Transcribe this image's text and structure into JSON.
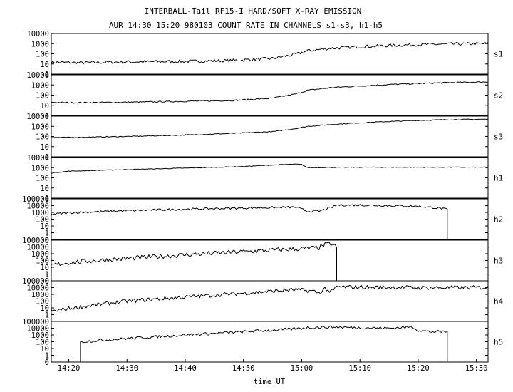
{
  "chart_data": {
    "type": "line",
    "title": "INTERBALL-Tail RF15-I HARD/SOFT X-RAY EMISSION",
    "subtitle": "AUR 14:30 15:20 980103  COUNT RATE IN CHANNELS s1-s3, h1-h5",
    "xlabel": "time UT",
    "x_ticks": [
      "14:20",
      "14:30",
      "14:40",
      "14:50",
      "15:00",
      "15:10",
      "15:20",
      "15:30"
    ],
    "xlim": [
      "14:17",
      "15:32"
    ],
    "y_scale": "log",
    "grid": false,
    "panels": [
      {
        "name": "s1",
        "ylim": [
          1,
          10000
        ],
        "y_ticks": [
          "10000",
          "1000",
          "100",
          "10",
          "1"
        ],
        "series": [
          {
            "x": [
              "14:17",
              "14:22",
              "14:30",
              "14:40",
              "14:48",
              "14:55",
              "14:59",
              "15:01",
              "15:05",
              "15:10",
              "15:15",
              "15:20",
              "15:25",
              "15:32"
            ],
            "y": [
              15,
              13,
              16,
              18,
              22,
              35,
              90,
              200,
              350,
              500,
              650,
              800,
              900,
              1000
            ],
            "noise": 0.15
          }
        ]
      },
      {
        "name": "s2",
        "ylim": [
          1,
          10000
        ],
        "y_ticks": [
          "10000",
          "1000",
          "100",
          "10",
          "1"
        ],
        "series": [
          {
            "x": [
              "14:17",
              "14:20",
              "14:30",
              "14:40",
              "14:48",
              "14:55",
              "14:59",
              "15:01",
              "15:05",
              "15:10",
              "15:15",
              "15:20",
              "15:25",
              "15:32"
            ],
            "y": [
              20,
              18,
              20,
              25,
              30,
              50,
              130,
              300,
              550,
              800,
              1100,
              1400,
              1700,
              2000
            ],
            "noise": 0.06
          }
        ]
      },
      {
        "name": "s3",
        "ylim": [
          1,
          10000
        ],
        "y_ticks": [
          "10000",
          "1000",
          "100",
          "10",
          "1"
        ],
        "series": [
          {
            "x": [
              "14:17",
              "14:20",
              "14:30",
              "14:40",
              "14:48",
              "14:55",
              "14:59",
              "15:01",
              "15:05",
              "15:10",
              "15:15",
              "15:20",
              "15:25",
              "15:32"
            ],
            "y": [
              80,
              80,
              100,
              140,
              200,
              300,
              600,
              1000,
              1500,
              2200,
              3000,
              3800,
              4500,
              5000
            ],
            "noise": 0.04
          }
        ]
      },
      {
        "name": "h1",
        "ylim": [
          1,
          10000
        ],
        "y_ticks": [
          "10000",
          "1000",
          "100",
          "10",
          "1"
        ],
        "series": [
          {
            "x": [
              "14:17",
              "14:20",
              "14:30",
              "14:40",
              "14:50",
              "14:55",
              "14:59",
              "15:00",
              "15:01",
              "15:05",
              "15:10",
              "15:20",
              "15:32"
            ],
            "y": [
              300,
              450,
              650,
              900,
              1300,
              1800,
              2200,
              2000,
              1000,
              1050,
              1100,
              1100,
              1100
            ],
            "noise": 0.03
          }
        ]
      },
      {
        "name": "h2",
        "ylim": [
          0.1,
          100000
        ],
        "y_ticks": [
          "100000",
          "10000",
          "1000",
          "100",
          "10",
          "1",
          "0"
        ],
        "series": [
          {
            "x": [
              "14:17",
              "14:20",
              "14:30",
              "14:40",
              "14:50",
              "14:59",
              "15:01",
              "15:03",
              "15:05",
              "15:06",
              "15:10",
              "15:15",
              "15:20",
              "15:24",
              "15:25",
              "15:25",
              "15:32"
            ],
            "y": [
              500,
              900,
              1800,
              3000,
              4500,
              6000,
              1500,
              1500,
              5000,
              12000,
              12000,
              10000,
              8000,
              4000,
              2500,
              0.1,
              0.1
            ],
            "noise": 0.15
          }
        ]
      },
      {
        "name": "h3",
        "ylim": [
          0.1,
          100000
        ],
        "y_ticks": [
          "100000",
          "10000",
          "1000",
          "100",
          "10",
          "1",
          "0"
        ],
        "series": [
          {
            "x": [
              "14:17",
              "14:20",
              "14:30",
              "14:40",
              "14:50",
              "14:59",
              "15:03",
              "15:04",
              "15:05",
              "15:06",
              "15:06",
              "15:32"
            ],
            "y": [
              20,
              50,
              200,
              700,
              2000,
              5000,
              8000,
              20000,
              30000,
              10000,
              0.1,
              0.1
            ],
            "noise": 0.35
          }
        ]
      },
      {
        "name": "h4",
        "ylim": [
          0.1,
          100000
        ],
        "y_ticks": [
          "100000",
          "10000",
          "1000",
          "100",
          "10",
          "1",
          "0"
        ],
        "series": [
          {
            "x": [
              "14:17",
              "14:20",
              "14:25",
              "14:30",
              "14:40",
              "14:50",
              "14:59",
              "15:02",
              "15:03",
              "15:04",
              "15:05",
              "15:06",
              "15:10",
              "15:20",
              "15:32"
            ],
            "y": [
              3,
              8,
              30,
              100,
              400,
              1500,
              5000,
              3000,
              1500,
              8000,
              2000,
              12000,
              12000,
              10000,
              10000
            ],
            "noise": 0.3
          }
        ]
      },
      {
        "name": "h5",
        "ylim": [
          0.1,
          100000
        ],
        "y_ticks": [
          "100000",
          "10000",
          "1000",
          "100",
          "10",
          "1",
          "0"
        ],
        "series": [
          {
            "x": [
              "14:17",
              "14:22",
              "14:22",
              "14:30",
              "14:40",
              "14:50",
              "14:59",
              "15:01",
              "15:05",
              "15:10",
              "15:15",
              "15:19",
              "15:20",
              "15:22",
              "15:25",
              "15:25",
              "15:32"
            ],
            "y": [
              0.1,
              0.1,
              100,
              300,
              1000,
              3000,
              8000,
              12000,
              15000,
              12000,
              10000,
              15000,
              5000,
              3000,
              3000,
              0.1,
              0.1
            ],
            "noise": 0.2
          }
        ]
      }
    ]
  }
}
